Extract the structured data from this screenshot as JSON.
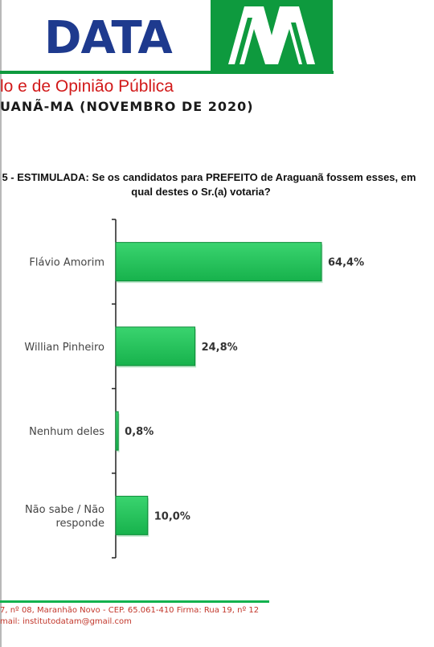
{
  "header": {
    "logo_text": "DATA",
    "logo_letter": "M",
    "org_line": "lo e de Opinião Pública",
    "city_line": "UANÃ-MA (NOVEMBRO DE 2020)"
  },
  "question": {
    "line1": "5 - ESTIMULADA: Se os candidatos para PREFEITO de Araguanã fossem esses, em",
    "line2": "qual destes o Sr.(a) votaria?"
  },
  "chart_data": {
    "type": "bar",
    "orientation": "horizontal",
    "categories": [
      "Flávio Amorim",
      "Willian Pinheiro",
      "Nenhum deles",
      "Não sabe / Não responde"
    ],
    "category_lines": [
      [
        "Flávio Amorim"
      ],
      [
        "Willian Pinheiro"
      ],
      [
        "Nenhum deles"
      ],
      [
        "Não sabe / Não",
        "responde"
      ]
    ],
    "values": [
      64.4,
      24.8,
      0.8,
      10.0
    ],
    "data_labels": [
      "64,4%",
      "24,8%",
      "0,8%",
      "10,0%"
    ],
    "unit": "%",
    "xlim": [
      0,
      64.4
    ],
    "grid": false,
    "bar_color": "#21c35a",
    "bar_edge_color": "#0f8a39"
  },
  "footer": {
    "address": "7, nº 08,  Maranhão Novo - CEP. 65.061-410 Firma: Rua 19, nº 12",
    "email": "mail: institutodatam@gmail.com"
  },
  "colors": {
    "brand_blue": "#1e3a8e",
    "brand_green": "#0e9a3e",
    "heading_red": "#d21a1a",
    "footer_green": "#13b24e",
    "footer_text": "#c2362a"
  }
}
